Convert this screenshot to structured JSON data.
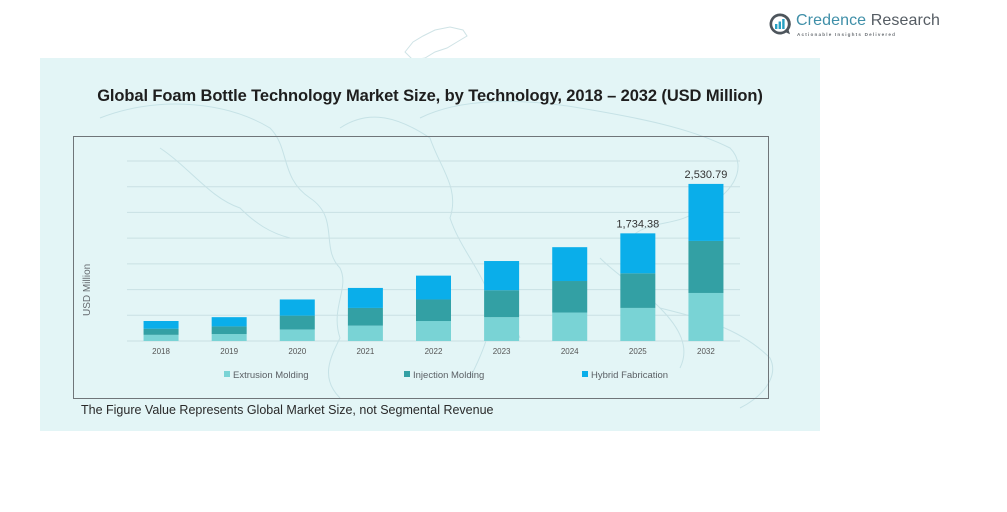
{
  "brand": {
    "name_part1": "Credence",
    "name_part2": " Research",
    "tagline": "Actionable Insights Delivered",
    "colors": {
      "primary": "#3f8fa8",
      "secondary": "#555c63"
    }
  },
  "footnote": "The Figure Value Represents Global Market Size, not Segmental Revenue",
  "chart_data": {
    "type": "bar",
    "stacked": true,
    "title": "Global Foam Bottle Technology Market Size, by Technology, 2018 – 2032 (USD Million)",
    "xlabel": "",
    "ylabel": "USD Million",
    "ylim": [
      0,
      2900
    ],
    "grid": true,
    "legend_position": "bottom",
    "categories": [
      "2018",
      "2019",
      "2020",
      "2021",
      "2022",
      "2023",
      "2024",
      "2025",
      "2032"
    ],
    "series": [
      {
        "name": "Extrusion Molding",
        "color": "#79d3d5",
        "values": [
          99.1,
          111.5,
          185.9,
          247.8,
          322.1,
          384.1,
          458.4,
          532.8,
          773.8
        ]
      },
      {
        "name": "Injection Molding",
        "color": "#33a0a4",
        "values": [
          99.1,
          123.9,
          223.0,
          285.0,
          346.9,
          433.6,
          508.0,
          557.6,
          838.3
        ]
      },
      {
        "name": "Hybrid Fabrication",
        "color": "#0aaeea",
        "values": [
          123.9,
          148.7,
          260.2,
          322.1,
          384.1,
          470.8,
          545.2,
          644.0,
          918.7
        ]
      }
    ],
    "totals": [
      322.1,
      384.1,
      669.1,
      854.9,
      1053.1,
      1288.5,
      1511.6,
      1734.38,
      2530.79
    ],
    "data_labels": [
      {
        "category": "2025",
        "text": "1,734.38"
      },
      {
        "category": "2032",
        "text": "2,530.79"
      }
    ]
  }
}
